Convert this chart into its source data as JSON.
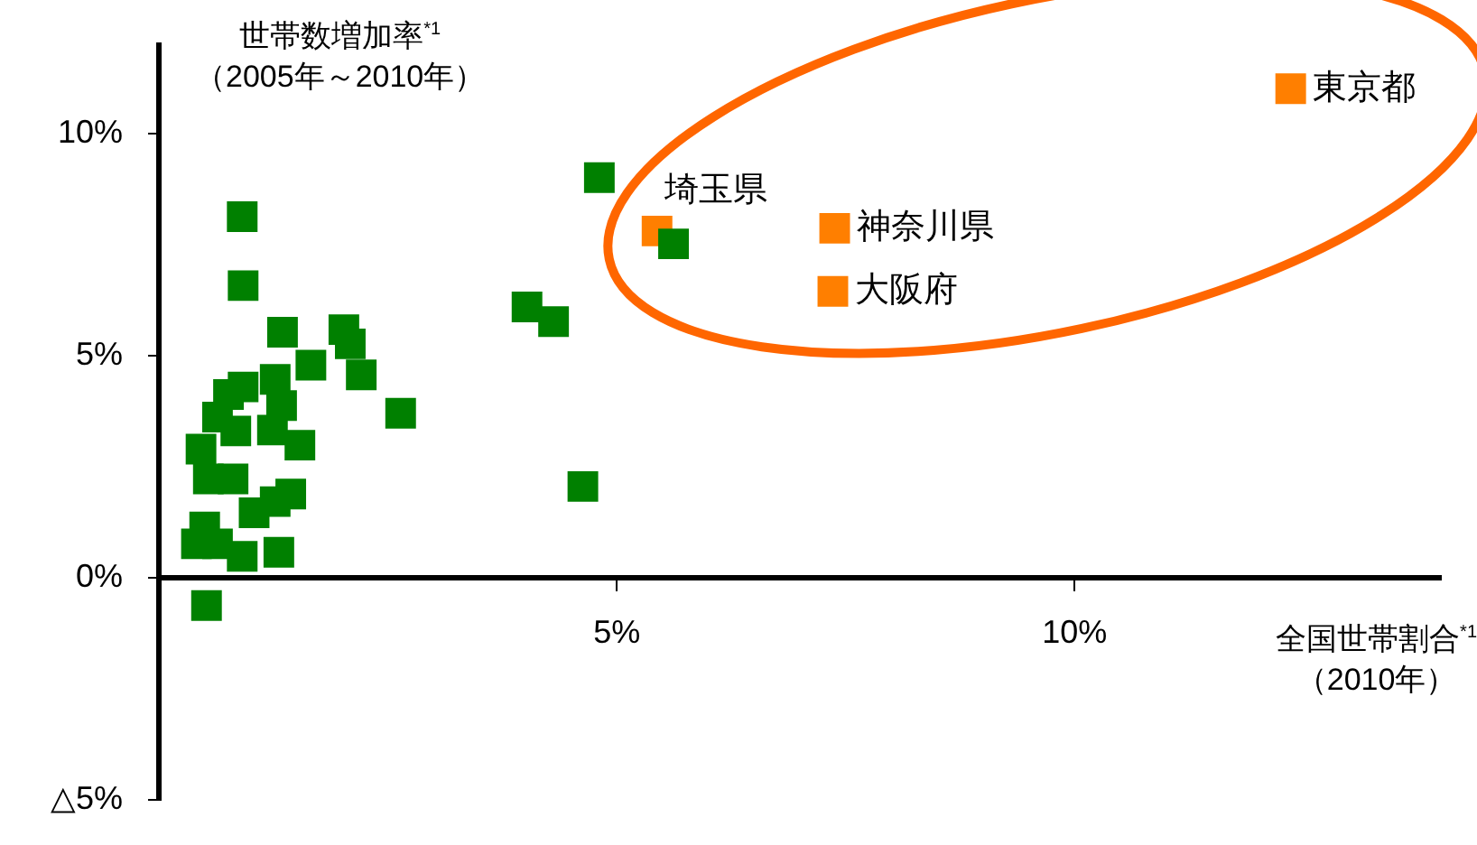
{
  "chart_data": {
    "type": "scatter",
    "xlabel": "全国世帯割合$^{*1}$\n（2010年）",
    "ylabel": "世帯数増加率$^{*1}$\n（2005年～2010年）",
    "marker": "square",
    "grid": false,
    "legend": false,
    "xlim": [
      0,
      14
    ],
    "xticks": [
      {
        "value": 5,
        "label": "5%"
      },
      {
        "value": 10,
        "label": "10%"
      }
    ],
    "ylim": [
      -5,
      12
    ],
    "yticks": [
      {
        "value": -5,
        "label": "△5%"
      },
      {
        "value": 0,
        "label": "0%"
      },
      {
        "value": 5,
        "label": "5%"
      },
      {
        "value": 10,
        "label": "10%"
      }
    ],
    "series": [
      {
        "color": "#008000",
        "x": [
          0.91,
          0.92,
          1.35,
          2.02,
          2.09,
          1.66,
          2.21,
          0.92,
          1.27,
          0.76,
          1.34,
          2.64,
          0.64,
          0.84,
          1.24,
          1.54,
          0.46,
          0.54,
          0.81,
          1.44,
          1.27,
          1.04,
          0.5,
          0.41,
          0.64,
          0.91,
          1.31,
          0.52,
          4.81,
          4.02,
          4.31,
          4.63,
          5.62
        ],
        "values": [
          8.13,
          6.58,
          5.53,
          5.59,
          5.27,
          4.79,
          4.57,
          4.3,
          4.47,
          4.13,
          3.88,
          3.71,
          3.62,
          3.31,
          3.33,
          2.99,
          2.9,
          2.23,
          2.23,
          1.89,
          1.72,
          1.47,
          1.15,
          0.77,
          0.77,
          0.49,
          0.58,
          -0.62,
          9.01,
          6.1,
          5.77,
          2.06,
          7.52
        ]
      },
      {
        "color": "#ff7f00",
        "x": [
          5.44,
          7.38,
          7.36,
          12.36
        ],
        "values": [
          7.81,
          7.87,
          6.45,
          11.01
        ]
      }
    ],
    "annotations": [
      {
        "text": "埼玉県",
        "x": 5.44,
        "y": 7.81
      },
      {
        "text": "神奈川県",
        "x": 7.38,
        "y": 7.87
      },
      {
        "text": "大阪府",
        "x": 7.36,
        "y": 6.45
      },
      {
        "text": "東京都",
        "x": 12.36,
        "y": 11.01
      }
    ]
  }
}
